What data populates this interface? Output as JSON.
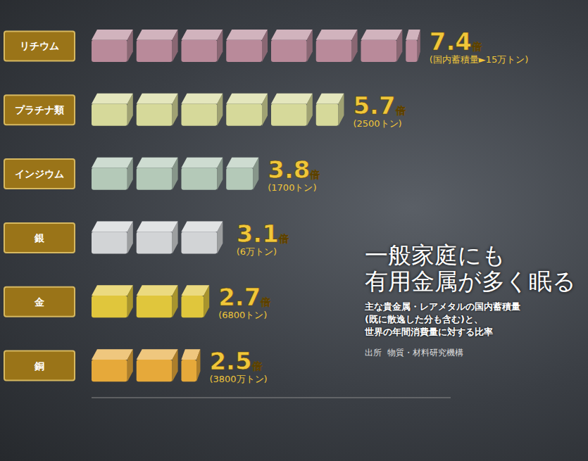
{
  "chart_data": {
    "type": "bar",
    "orientation": "horizontal",
    "title": "一般家庭にも\n有用金属が多く眠る",
    "subtitle": "主な貴金属・レアメタルの国内蓄積量\n(既に散逸した分も含む)と、\n世界の年間消費量に対する比率",
    "source": "出所  物質・材料研究機構",
    "categories": [
      "リチウム",
      "プラチナ類",
      "インジウム",
      "銀",
      "金",
      "銅"
    ],
    "values": [
      7.4,
      5.7,
      3.8,
      3.1,
      2.7,
      2.5
    ],
    "value_labels": [
      "7.4倍",
      "5.7倍",
      "3.8倍",
      "3.1倍",
      "2.7倍",
      "2.5倍"
    ],
    "reserves": [
      "(国内蓄積量►15万トン)",
      "(2500トン)",
      "(1700トン)",
      "(6万トン)",
      "(6800トン)",
      "(3800万トン)"
    ],
    "colors": [
      "#b98a9a",
      "#d6d99a",
      "#b4c9b8",
      "#d2d4d6",
      "#e0c63c",
      "#e6a93a"
    ],
    "xlim": [
      0,
      8
    ],
    "tick_labels": "y",
    "data_labels": true,
    "grid": false
  }
}
